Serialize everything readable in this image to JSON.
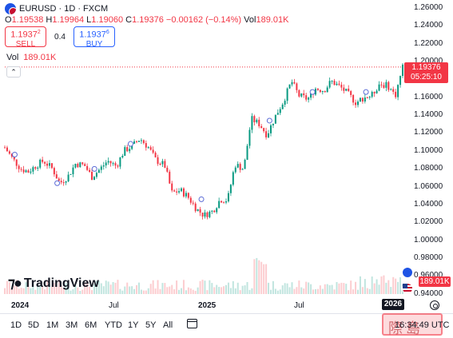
{
  "header": {
    "symbol": "EURUSD · 1D · FXCM",
    "ohlc": [
      {
        "label": "O",
        "value": "1.19538"
      },
      {
        "label": "H",
        "value": "1.19964"
      },
      {
        "label": "L",
        "value": "1.19060"
      },
      {
        "label": "C",
        "value": "1.19376"
      }
    ],
    "change": "−0.00162 (−0.14%)",
    "vol_label": "Vol",
    "vol_value": "189.01K"
  },
  "trade": {
    "sell_price_main": "1.1937",
    "sell_price_sup": "2",
    "sell_label": "SELL",
    "spread": "0.4",
    "buy_price_main": "1.1937",
    "buy_price_sup": "6",
    "buy_label": "BUY"
  },
  "volume_legend": {
    "label": "Vol",
    "value": "189.01K"
  },
  "logo": {
    "text": "TradingView"
  },
  "price_axis": {
    "ticks": [
      "1.26000",
      "1.24000",
      "1.22000",
      "1.20000",
      "1.18000",
      "1.16000",
      "1.14000",
      "1.12000",
      "1.10000",
      "1.08000",
      "1.06000",
      "1.04000",
      "1.02000",
      "1.00000",
      "0.98000",
      "0.96000",
      "0.94000"
    ],
    "current_price": "1.19376",
    "countdown": "05:25:10",
    "volume_tag": "189.01K"
  },
  "time_axis": {
    "labels": [
      {
        "text": "2024",
        "bold": true
      },
      {
        "text": "Jul",
        "bold": false
      },
      {
        "text": "2025",
        "bold": true
      },
      {
        "text": "Jul",
        "bold": false
      },
      {
        "text": "2026",
        "bold": true
      }
    ],
    "box_label": "2026"
  },
  "toolbar": {
    "ranges": [
      "1D",
      "5D",
      "1M",
      "3M",
      "6M",
      "YTD",
      "1Y",
      "5Y",
      "All"
    ],
    "clock": "16:34:49 UTC"
  },
  "colors": {
    "up": "#089981",
    "down": "#f23645",
    "accent": "#2962ff",
    "text": "#131722"
  },
  "chart_data": {
    "type": "candlestick",
    "title": "EURUSD · 1D · FXCM",
    "xlabel": "",
    "ylabel": "",
    "ylim": [
      0.94,
      1.26
    ],
    "x_start": "2024-01-01",
    "x_end": "2026-01-29",
    "series": [
      {
        "name": "EURUSD",
        "points": [
          [
            "2024-01-01",
            1.104
          ],
          [
            "2024-01-15",
            1.092
          ],
          [
            "2024-02-01",
            1.08
          ],
          [
            "2024-02-15",
            1.077
          ],
          [
            "2024-03-01",
            1.084
          ],
          [
            "2024-03-15",
            1.089
          ],
          [
            "2024-04-01",
            1.08
          ],
          [
            "2024-04-15",
            1.064
          ],
          [
            "2024-05-01",
            1.072
          ],
          [
            "2024-05-15",
            1.086
          ],
          [
            "2024-06-01",
            1.084
          ],
          [
            "2024-06-15",
            1.071
          ],
          [
            "2024-07-01",
            1.08
          ],
          [
            "2024-07-15",
            1.089
          ],
          [
            "2024-08-01",
            1.083
          ],
          [
            "2024-08-15",
            1.1
          ],
          [
            "2024-09-01",
            1.106
          ],
          [
            "2024-09-15",
            1.114
          ],
          [
            "2024-10-01",
            1.104
          ],
          [
            "2024-10-15",
            1.09
          ],
          [
            "2024-11-01",
            1.084
          ],
          [
            "2024-11-15",
            1.053
          ],
          [
            "2024-12-01",
            1.056
          ],
          [
            "2024-12-15",
            1.049
          ],
          [
            "2025-01-01",
            1.035
          ],
          [
            "2025-01-15",
            1.028
          ],
          [
            "2025-02-01",
            1.033
          ],
          [
            "2025-02-15",
            1.046
          ],
          [
            "2025-03-01",
            1.045
          ],
          [
            "2025-03-15",
            1.085
          ],
          [
            "2025-04-01",
            1.08
          ],
          [
            "2025-04-15",
            1.136
          ],
          [
            "2025-05-01",
            1.13
          ],
          [
            "2025-05-15",
            1.118
          ],
          [
            "2025-06-01",
            1.14
          ],
          [
            "2025-06-15",
            1.155
          ],
          [
            "2025-07-01",
            1.178
          ],
          [
            "2025-07-15",
            1.162
          ],
          [
            "2025-08-01",
            1.158
          ],
          [
            "2025-08-15",
            1.17
          ],
          [
            "2025-09-01",
            1.168
          ],
          [
            "2025-09-15",
            1.178
          ],
          [
            "2025-10-01",
            1.172
          ],
          [
            "2025-10-15",
            1.165
          ],
          [
            "2025-11-01",
            1.154
          ],
          [
            "2025-11-15",
            1.16
          ],
          [
            "2025-12-01",
            1.162
          ],
          [
            "2025-12-15",
            1.175
          ],
          [
            "2026-01-01",
            1.173
          ],
          [
            "2026-01-15",
            1.162
          ],
          [
            "2026-01-29",
            1.194
          ]
        ]
      }
    ]
  }
}
